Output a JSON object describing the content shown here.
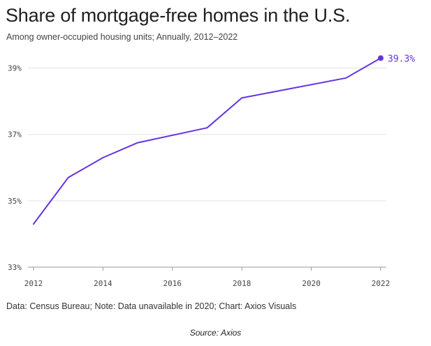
{
  "chart_data": {
    "type": "line",
    "title": "Share of mortgage-free homes in the U.S.",
    "subtitle": "Among owner-occupied housing units; Annually, 2012–2022",
    "x": [
      2012,
      2013,
      2014,
      2015,
      2017,
      2018,
      2019,
      2021,
      2022
    ],
    "series": [
      {
        "values": [
          34.3,
          35.7,
          36.3,
          36.75,
          37.2,
          38.1,
          38.3,
          38.7,
          39.3
        ],
        "color": "#6533e0"
      }
    ],
    "xticks": [
      "2012",
      "2014",
      "2016",
      "2018",
      "2020",
      "2022"
    ],
    "yticks": [
      "33%",
      "35%",
      "37%",
      "39%"
    ],
    "ylim": [
      33,
      39.6
    ],
    "xlim": [
      2012,
      2022
    ],
    "grid": "horizontal",
    "end_label": "39.3%",
    "footnote": "Data: Census Bureau; Note: Data unavailable in 2020; Chart: Axios Visuals",
    "source": "Source: Axios"
  }
}
